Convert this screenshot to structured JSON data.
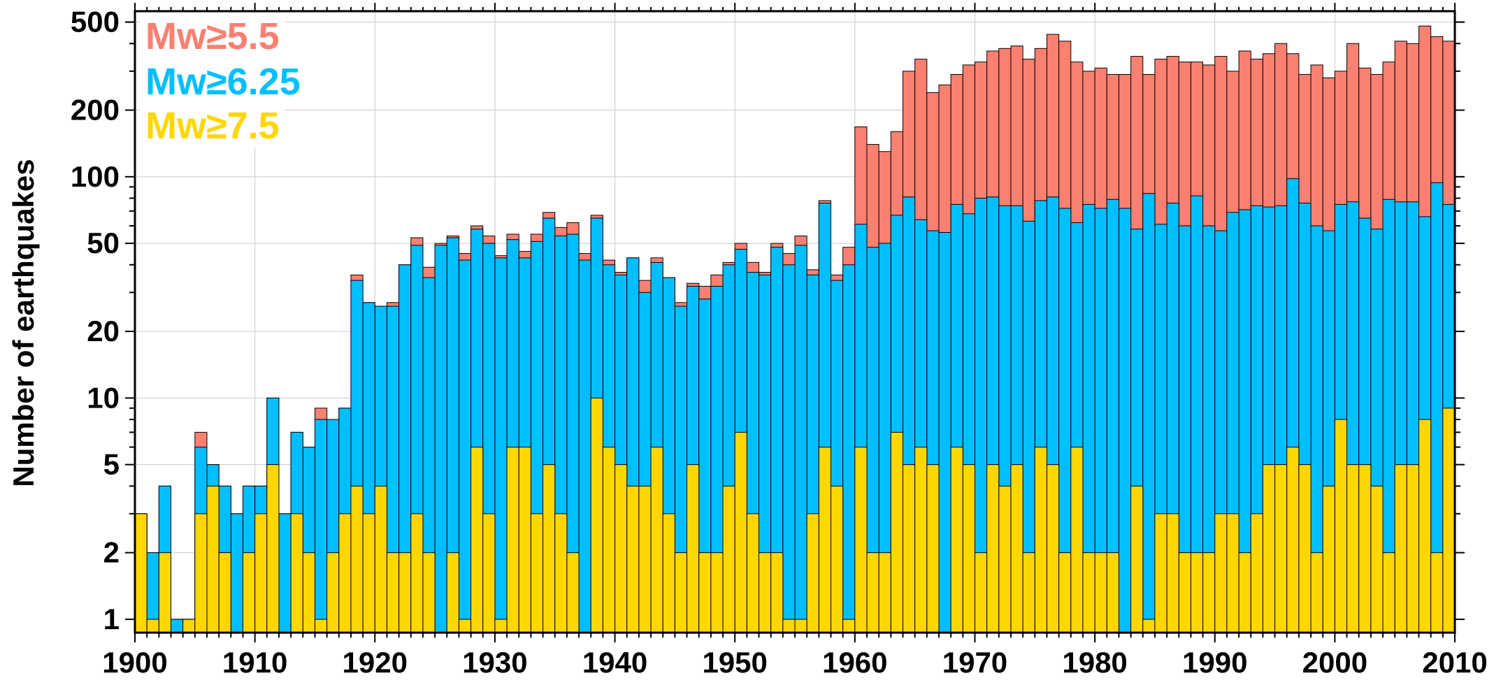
{
  "chart_data": {
    "type": "bar",
    "stacking": "overlaid",
    "ylabel": "Number of earthquakes",
    "xlabel": "",
    "yscale": "log",
    "xlim": [
      1900,
      2010
    ],
    "ylim": [
      0.87,
      560
    ],
    "grid": true,
    "legend_position": "top-left",
    "x_ticks": [
      "1900",
      "1910",
      "1920",
      "1930",
      "1940",
      "1950",
      "1960",
      "1970",
      "1980",
      "1990",
      "2000",
      "2010"
    ],
    "y_ticks": [
      "1",
      "2",
      "5",
      "10",
      "20",
      "50",
      "100",
      "200",
      "500"
    ],
    "x": [
      1900,
      1901,
      1902,
      1903,
      1904,
      1905,
      1906,
      1907,
      1908,
      1909,
      1910,
      1911,
      1912,
      1913,
      1914,
      1915,
      1916,
      1917,
      1918,
      1919,
      1920,
      1921,
      1922,
      1923,
      1924,
      1925,
      1926,
      1927,
      1928,
      1929,
      1930,
      1931,
      1932,
      1933,
      1934,
      1935,
      1936,
      1937,
      1938,
      1939,
      1940,
      1941,
      1942,
      1943,
      1944,
      1945,
      1946,
      1947,
      1948,
      1949,
      1950,
      1951,
      1952,
      1953,
      1954,
      1955,
      1956,
      1957,
      1958,
      1959,
      1960,
      1961,
      1962,
      1963,
      1964,
      1965,
      1966,
      1967,
      1968,
      1969,
      1970,
      1971,
      1972,
      1973,
      1974,
      1975,
      1976,
      1977,
      1978,
      1979,
      1980,
      1981,
      1982,
      1983,
      1984,
      1985,
      1986,
      1987,
      1988,
      1989,
      1990,
      1991,
      1992,
      1993,
      1994,
      1995,
      1996,
      1997,
      1998,
      1999,
      2000,
      2001,
      2002,
      2003,
      2004,
      2005,
      2006,
      2007,
      2008,
      2009
    ],
    "series": [
      {
        "name": "Mw≥5.5",
        "color": "#fa8072",
        "values": [
          3,
          2,
          4,
          1,
          1,
          7,
          5,
          4,
          3,
          4,
          4,
          10,
          3,
          7,
          6,
          9,
          8,
          9,
          36,
          27,
          26,
          27,
          40,
          53,
          39,
          50,
          54,
          45,
          60,
          54,
          44,
          55,
          46,
          55,
          69,
          59,
          62,
          45,
          67,
          42,
          37,
          43,
          34,
          43,
          35,
          27,
          33,
          32,
          36,
          41,
          50,
          41,
          37,
          50,
          45,
          54,
          38,
          78,
          36,
          48,
          168,
          140,
          130,
          160,
          300,
          340,
          240,
          260,
          290,
          320,
          330,
          370,
          380,
          390,
          340,
          380,
          440,
          410,
          330,
          300,
          310,
          290,
          290,
          350,
          290,
          340,
          350,
          330,
          330,
          320,
          350,
          300,
          370,
          340,
          360,
          400,
          360,
          290,
          320,
          280,
          300,
          400,
          310,
          290,
          330,
          410,
          400,
          480,
          430,
          410
        ]
      },
      {
        "name": "Mw≥6.25",
        "color": "#00bfff",
        "values": [
          3,
          2,
          4,
          1,
          1,
          6,
          5,
          4,
          3,
          4,
          4,
          10,
          3,
          7,
          6,
          8,
          8,
          9,
          34,
          27,
          26,
          26,
          40,
          49,
          35,
          49,
          53,
          42,
          58,
          50,
          43,
          52,
          43,
          51,
          65,
          54,
          55,
          42,
          65,
          40,
          36,
          43,
          30,
          41,
          35,
          26,
          32,
          28,
          32,
          40,
          47,
          37,
          36,
          48,
          40,
          49,
          36,
          76,
          34,
          40,
          61,
          48,
          50,
          67,
          81,
          64,
          57,
          56,
          75,
          68,
          80,
          81,
          74,
          74,
          63,
          78,
          81,
          72,
          62,
          75,
          72,
          79,
          72,
          58,
          84,
          61,
          76,
          60,
          82,
          60,
          57,
          69,
          71,
          74,
          73,
          74,
          98,
          76,
          60,
          57,
          75,
          77,
          65,
          58,
          79,
          77,
          77,
          66,
          94,
          75
        ]
      },
      {
        "name": "Mw≥7.5",
        "color": "#ffd700",
        "values": [
          3,
          1,
          2,
          0,
          1,
          3,
          4,
          2,
          0,
          2,
          3,
          5,
          0,
          3,
          2,
          1,
          2,
          3,
          4,
          3,
          4,
          2,
          2,
          3,
          2,
          0,
          2,
          1,
          6,
          3,
          1,
          6,
          6,
          3,
          5,
          3,
          2,
          0,
          10,
          6,
          5,
          4,
          4,
          6,
          3,
          2,
          5,
          2,
          2,
          4,
          7,
          3,
          2,
          2,
          1,
          1,
          3,
          6,
          4,
          1,
          6,
          2,
          2,
          7,
          5,
          6,
          5,
          0,
          6,
          5,
          2,
          5,
          4,
          5,
          2,
          6,
          5,
          2,
          6,
          2,
          2,
          2,
          0,
          4,
          1,
          3,
          3,
          2,
          2,
          2,
          3,
          3,
          2,
          3,
          5,
          5,
          6,
          5,
          2,
          4,
          8,
          5,
          5,
          4,
          2,
          5,
          5,
          8,
          2,
          9
        ]
      }
    ]
  }
}
